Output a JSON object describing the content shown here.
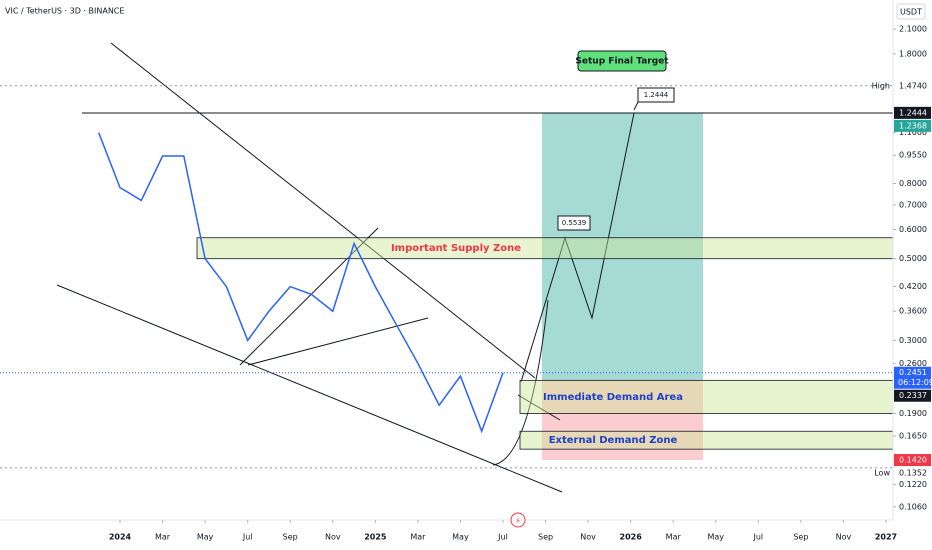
{
  "chart_data": {
    "type": "line",
    "title": "VIC / TetherUS · 3D · BINANCE",
    "y_unit": "USDT",
    "x": [
      "2023-12",
      "2024-01",
      "2024-02",
      "2024-03",
      "2024-04",
      "2024-05",
      "2024-06",
      "2024-07",
      "2024-08",
      "2024-09",
      "2024-10",
      "2024-11",
      "2024-12",
      "2025-01",
      "2025-02",
      "2025-03",
      "2025-04",
      "2025-05",
      "2025-06",
      "2025-07"
    ],
    "values": [
      1.1,
      0.78,
      0.72,
      0.95,
      0.95,
      0.5,
      0.42,
      0.3,
      0.36,
      0.42,
      0.4,
      0.36,
      0.55,
      0.42,
      0.33,
      0.26,
      0.2,
      0.24,
      0.17,
      0.2451
    ],
    "color": "#2962ff",
    "log_scale": true,
    "ylim": [
      0.0976,
      2.52
    ],
    "yticks": [
      {
        "value": 2.1,
        "label": "2.1000"
      },
      {
        "value": 1.8,
        "label": "1.8000"
      },
      {
        "value": 1.1,
        "label": "1.1000"
      },
      {
        "value": 0.955,
        "label": "0.9550"
      },
      {
        "value": 0.8,
        "label": "0.8000"
      },
      {
        "value": 0.7,
        "label": "0.7000"
      },
      {
        "value": 0.6,
        "label": "0.6000"
      },
      {
        "value": 0.5,
        "label": "0.5000"
      },
      {
        "value": 0.42,
        "label": "0.4200"
      },
      {
        "value": 0.36,
        "label": "0.3600"
      },
      {
        "value": 0.3,
        "label": "0.3000"
      },
      {
        "value": 0.26,
        "label": "0.2600"
      },
      {
        "value": 0.19,
        "label": "0.1900"
      },
      {
        "value": 0.165,
        "label": "0.1650"
      },
      {
        "value": 0.122,
        "label": "0.1220"
      },
      {
        "value": 0.106,
        "label": "0.1060"
      }
    ],
    "xticks": [
      {
        "value": "2024-01",
        "label": "2024"
      },
      {
        "value": "2024-03",
        "label": "Mar"
      },
      {
        "value": "2024-05",
        "label": "May"
      },
      {
        "value": "2024-07",
        "label": "Jul"
      },
      {
        "value": "2024-09",
        "label": "Sep"
      },
      {
        "value": "2024-11",
        "label": "Nov"
      },
      {
        "value": "2025-01",
        "label": "2025"
      },
      {
        "value": "2025-03",
        "label": "Mar"
      },
      {
        "value": "2025-05",
        "label": "May"
      },
      {
        "value": "2025-07",
        "label": "Jul"
      },
      {
        "value": "2025-09",
        "label": "Sep"
      },
      {
        "value": "2025-11",
        "label": "Nov"
      },
      {
        "value": "2026-01",
        "label": "2026"
      },
      {
        "value": "2026-03",
        "label": "Mar"
      },
      {
        "value": "2026-05",
        "label": "May"
      },
      {
        "value": "2026-07",
        "label": "Jul"
      },
      {
        "value": "2026-09",
        "label": "Sep"
      },
      {
        "value": "2026-11",
        "label": "Nov"
      },
      {
        "value": "2027-01",
        "label": "2027"
      }
    ],
    "price_labels": [
      {
        "value": 1.474,
        "label": "1.4740",
        "tag": "High"
      },
      {
        "value": 1.2444,
        "label": "1.2444",
        "color": "#131722"
      },
      {
        "value": 1.2368,
        "label": "1.2368",
        "color": "#26a69a"
      },
      {
        "value": 0.2451,
        "label": "0.2451",
        "color": "#2962ff",
        "countdown": "06:12:09"
      },
      {
        "value": 0.2337,
        "label": "0.2337",
        "color": "#131722"
      },
      {
        "value": 0.142,
        "label": "0.1420",
        "color": "#f23645"
      },
      {
        "value": 0.1352,
        "label": "0.1352",
        "tag": "Low"
      }
    ],
    "zones": [
      {
        "label": "Important Supply Zone",
        "low": 0.5,
        "high": 0.57,
        "color": "#f23645"
      },
      {
        "label": "Immediate Demand Area",
        "low": 0.19,
        "high": 0.2337,
        "color": "#1e40c8"
      },
      {
        "label": "External Demand Zone",
        "low": 0.152,
        "high": 0.17,
        "color": "#1e40c8"
      }
    ],
    "annotations": [
      "Setup Final Target",
      "1.2444",
      "0.5539"
    ]
  }
}
